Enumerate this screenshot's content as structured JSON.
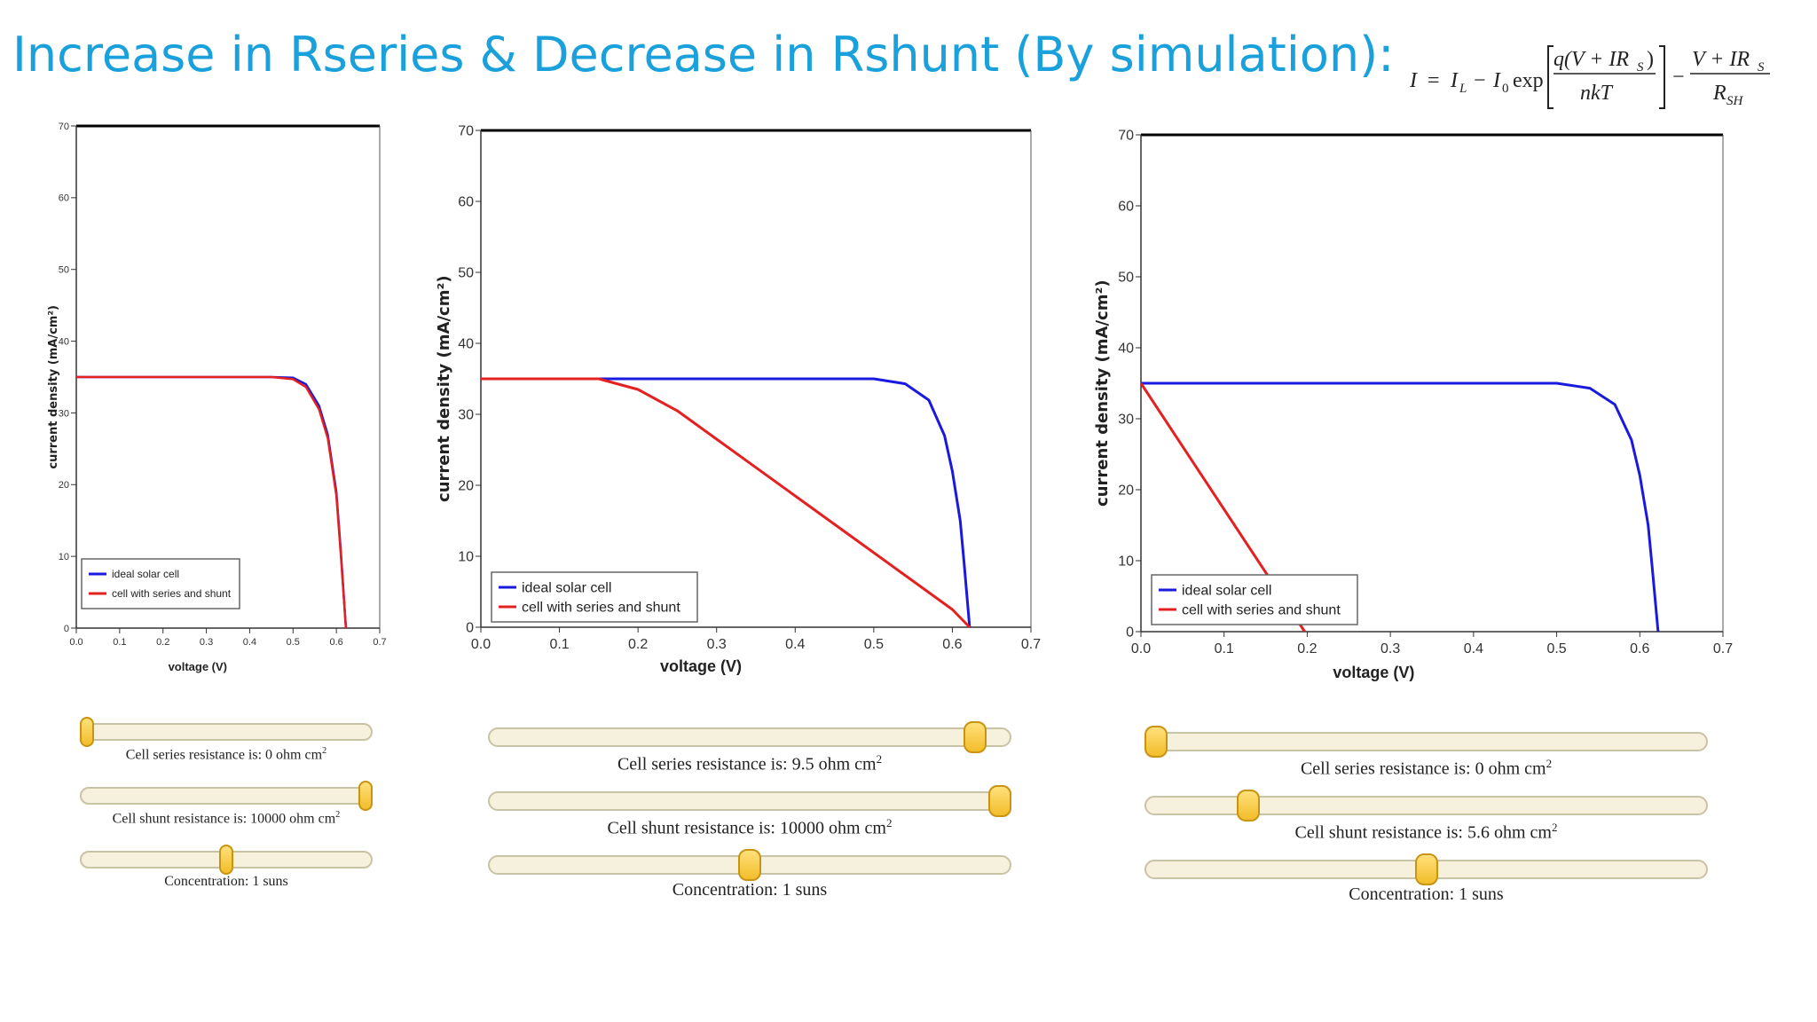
{
  "title": "Increase in Rseries & Decrease in Rshunt (By simulation):",
  "equation": {
    "lhs": "I",
    "il": "I",
    "il_sub": "L",
    "io": "I",
    "io_sub": "0",
    "exp": "exp",
    "num1": "q(V + IR",
    "num1_sub": "S",
    "num1_end": ")",
    "den1": "nkT",
    "num2": "V + IR",
    "num2_sub": "S",
    "den2": "R",
    "den2_sub": "SH"
  },
  "colors": {
    "ideal": "#1a1adf",
    "real": "#e52020",
    "title": "#1aa1dc"
  },
  "chart_data": [
    {
      "type": "line",
      "ylabel": "current density (mA/cm²)",
      "xlabel": "voltage (V)",
      "xlim": [
        0,
        0.7
      ],
      "ylim": [
        0,
        70
      ],
      "xticks": [
        "0.0",
        "0.1",
        "0.2",
        "0.3",
        "0.4",
        "0.5",
        "0.6",
        "0.7"
      ],
      "yticks": [
        "0",
        "10",
        "20",
        "30",
        "40",
        "50",
        "60",
        "70"
      ],
      "legend": [
        "ideal solar cell",
        "cell with series and shunt"
      ],
      "series": [
        {
          "name": "ideal solar cell",
          "x": [
            0,
            0.45,
            0.5,
            0.53,
            0.56,
            0.58,
            0.6,
            0.61,
            0.622
          ],
          "y": [
            35,
            35,
            34.9,
            34,
            31,
            27,
            19,
            11,
            0
          ]
        },
        {
          "name": "cell with series and shunt",
          "x": [
            0,
            0.45,
            0.5,
            0.53,
            0.56,
            0.58,
            0.6,
            0.61,
            0.622
          ],
          "y": [
            35,
            35,
            34.7,
            33.6,
            30.5,
            26.5,
            18.5,
            10.5,
            0
          ]
        }
      ]
    },
    {
      "type": "line",
      "ylabel": "current density (mA/cm²)",
      "xlabel": "voltage (V)",
      "xlim": [
        0,
        0.7
      ],
      "ylim": [
        0,
        70
      ],
      "xticks": [
        "0.0",
        "0.1",
        "0.2",
        "0.3",
        "0.4",
        "0.5",
        "0.6",
        "0.7"
      ],
      "yticks": [
        "0",
        "10",
        "20",
        "30",
        "40",
        "50",
        "60",
        "70"
      ],
      "legend": [
        "ideal solar cell",
        "cell with series and shunt"
      ],
      "series": [
        {
          "name": "ideal solar cell",
          "x": [
            0,
            0.5,
            0.54,
            0.57,
            0.59,
            0.6,
            0.61,
            0.615,
            0.622
          ],
          "y": [
            35,
            35,
            34.3,
            32,
            27,
            22,
            15,
            9,
            0
          ]
        },
        {
          "name": "cell with series and shunt",
          "x": [
            0,
            0.15,
            0.2,
            0.25,
            0.3,
            0.4,
            0.5,
            0.6,
            0.622
          ],
          "y": [
            35,
            35,
            33.5,
            30.5,
            26.5,
            18.5,
            10.5,
            2.5,
            0
          ]
        }
      ]
    },
    {
      "type": "line",
      "ylabel": "current density (mA/cm²)",
      "xlabel": "voltage (V)",
      "xlim": [
        0,
        0.7
      ],
      "ylim": [
        0,
        70
      ],
      "xticks": [
        "0.0",
        "0.1",
        "0.2",
        "0.3",
        "0.4",
        "0.5",
        "0.6",
        "0.7"
      ],
      "yticks": [
        "0",
        "10",
        "20",
        "30",
        "40",
        "50",
        "60",
        "70"
      ],
      "legend": [
        "ideal solar cell",
        "cell with series and shunt"
      ],
      "series": [
        {
          "name": "ideal solar cell",
          "x": [
            0,
            0.5,
            0.54,
            0.57,
            0.59,
            0.6,
            0.61,
            0.615,
            0.622
          ],
          "y": [
            35,
            35,
            34.3,
            32,
            27,
            22,
            15,
            9,
            0
          ]
        },
        {
          "name": "cell with series and shunt",
          "x": [
            0,
            0.197
          ],
          "y": [
            35,
            0
          ]
        }
      ]
    }
  ],
  "controls": [
    [
      {
        "prefix": "Cell series resistance is: ",
        "value": "0",
        "unit": " ohm cm",
        "sup": "2",
        "fraction": 0.0
      },
      {
        "prefix": "Cell shunt resistance is: ",
        "value": "10000",
        "unit": " ohm cm",
        "sup": "2",
        "fraction": 1.0
      },
      {
        "prefix": "Concentration: ",
        "value": "1",
        "unit": " suns",
        "sup": "",
        "fraction": 0.5
      }
    ],
    [
      {
        "prefix": "Cell series resistance is: ",
        "value": "9.5",
        "unit": " ohm cm",
        "sup": "2",
        "fraction": 0.95
      },
      {
        "prefix": "Cell shunt resistance is: ",
        "value": "10000",
        "unit": " ohm cm",
        "sup": "2",
        "fraction": 1.0
      },
      {
        "prefix": "Concentration: ",
        "value": "1",
        "unit": " suns",
        "sup": "",
        "fraction": 0.5
      }
    ],
    [
      {
        "prefix": "Cell series resistance is: ",
        "value": "0",
        "unit": " ohm cm",
        "sup": "2",
        "fraction": 0.0
      },
      {
        "prefix": "Cell shunt resistance is: ",
        "value": "5.6",
        "unit": " ohm cm",
        "sup": "2",
        "fraction": 0.17
      },
      {
        "prefix": "Concentration: ",
        "value": "1",
        "unit": " suns",
        "sup": "",
        "fraction": 0.5
      }
    ]
  ]
}
